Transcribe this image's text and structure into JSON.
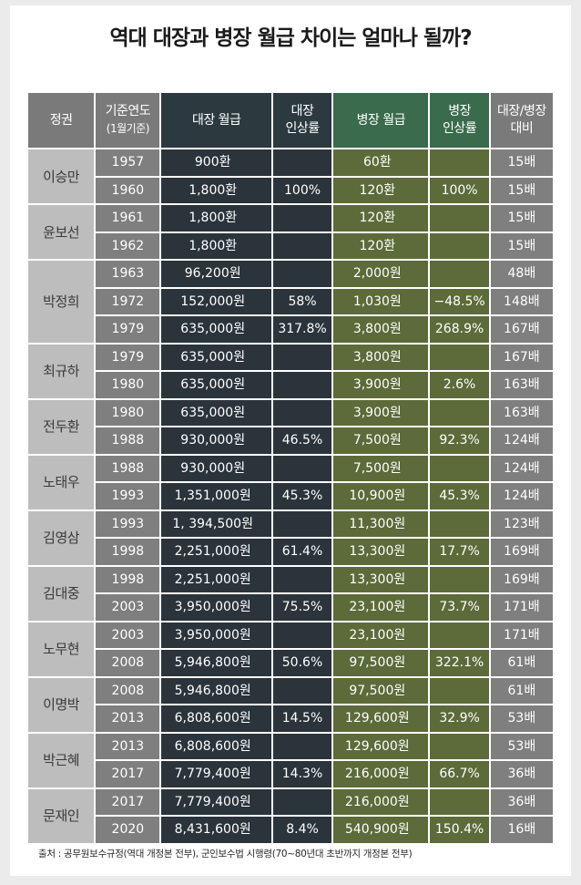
{
  "title": "역대 대장과 병장 월급 차이는 얼마나 될까?",
  "headers": {
    "regime": "정권",
    "year_line1": "기준연도",
    "year_line2": "(1월기준)",
    "general_salary": "대장 월급",
    "general_rate_line1": "대장",
    "general_rate_line2": "인상률",
    "private_salary": "병장 월급",
    "private_rate_line1": "병장",
    "private_rate_line2": "인상률",
    "ratio_line1": "대장/병장",
    "ratio_line2": "대비"
  },
  "groups": [
    {
      "regime": "이승만",
      "rows": [
        {
          "year": "1957",
          "general": "900환",
          "general_rate": "",
          "private": "60환",
          "private_rate": "",
          "ratio": "15배"
        },
        {
          "year": "1960",
          "general": "1,800환",
          "general_rate": "100%",
          "private": "120환",
          "private_rate": "100%",
          "ratio": "15배"
        }
      ]
    },
    {
      "regime": "윤보선",
      "rows": [
        {
          "year": "1961",
          "general": "1,800환",
          "general_rate": "",
          "private": "120환",
          "private_rate": "",
          "ratio": "15배"
        },
        {
          "year": "1962",
          "general": "1,800환",
          "general_rate": "",
          "private": "120환",
          "private_rate": "",
          "ratio": "15배"
        }
      ]
    },
    {
      "regime": "박정희",
      "rows": [
        {
          "year": "1963",
          "general": "96,200원",
          "general_rate": "",
          "private": "2,000원",
          "private_rate": "",
          "ratio": "48배"
        },
        {
          "year": "1972",
          "general": "152,000원",
          "general_rate": "58%",
          "private": "1,030원",
          "private_rate": "−48.5%",
          "ratio": "148배"
        },
        {
          "year": "1979",
          "general": "635,000원",
          "general_rate": "317.8%",
          "private": "3,800원",
          "private_rate": "268.9%",
          "ratio": "167배"
        }
      ]
    },
    {
      "regime": "최규하",
      "rows": [
        {
          "year": "1979",
          "general": "635,000원",
          "general_rate": "",
          "private": "3,800원",
          "private_rate": "",
          "ratio": "167배"
        },
        {
          "year": "1980",
          "general": "635,000원",
          "general_rate": "",
          "private": "3,900원",
          "private_rate": "2.6%",
          "ratio": "163배"
        }
      ]
    },
    {
      "regime": "전두환",
      "rows": [
        {
          "year": "1980",
          "general": "635,000원",
          "general_rate": "",
          "private": "3,900원",
          "private_rate": "",
          "ratio": "163배"
        },
        {
          "year": "1988",
          "general": "930,000원",
          "general_rate": "46.5%",
          "private": "7,500원",
          "private_rate": "92.3%",
          "ratio": "124배"
        }
      ]
    },
    {
      "regime": "노태우",
      "rows": [
        {
          "year": "1988",
          "general": "930,000원",
          "general_rate": "",
          "private": "7,500원",
          "private_rate": "",
          "ratio": "124배"
        },
        {
          "year": "1993",
          "general": "1,351,000원",
          "general_rate": "45.3%",
          "private": "10,900원",
          "private_rate": "45.3%",
          "ratio": "124배"
        }
      ]
    },
    {
      "regime": "김영삼",
      "rows": [
        {
          "year": "1993",
          "general": "1, 394,500원",
          "general_rate": "",
          "private": "11,300원",
          "private_rate": "",
          "ratio": "123배"
        },
        {
          "year": "1998",
          "general": "2,251,000원",
          "general_rate": "61.4%",
          "private": "13,300원",
          "private_rate": "17.7%",
          "ratio": "169배"
        }
      ]
    },
    {
      "regime": "김대중",
      "rows": [
        {
          "year": "1998",
          "general": "2,251,000원",
          "general_rate": "",
          "private": "13,300원",
          "private_rate": "",
          "ratio": "169배"
        },
        {
          "year": "2003",
          "general": "3,950,000원",
          "general_rate": "75.5%",
          "private": "23,100원",
          "private_rate": "73.7%",
          "ratio": "171배"
        }
      ]
    },
    {
      "regime": "노무현",
      "rows": [
        {
          "year": "2003",
          "general": "3,950,000원",
          "general_rate": "",
          "private": "23,100원",
          "private_rate": "",
          "ratio": "171배"
        },
        {
          "year": "2008",
          "general": "5,946,800원",
          "general_rate": "50.6%",
          "private": "97,500원",
          "private_rate": "322.1%",
          "ratio": "61배"
        }
      ]
    },
    {
      "regime": "이명박",
      "rows": [
        {
          "year": "2008",
          "general": "5,946,800원",
          "general_rate": "",
          "private": "97,500원",
          "private_rate": "",
          "ratio": "61배"
        },
        {
          "year": "2013",
          "general": "6,808,600원",
          "general_rate": "14.5%",
          "private": "129,600원",
          "private_rate": "32.9%",
          "ratio": "53배"
        }
      ]
    },
    {
      "regime": "박근혜",
      "rows": [
        {
          "year": "2013",
          "general": "6,808,600원",
          "general_rate": "",
          "private": "129,600원",
          "private_rate": "",
          "ratio": "53배"
        },
        {
          "year": "2017",
          "general": "7,779,400원",
          "general_rate": "14.3%",
          "private": "216,000원",
          "private_rate": "66.7%",
          "ratio": "36배"
        }
      ]
    },
    {
      "regime": "문재인",
      "rows": [
        {
          "year": "2017",
          "general": "7,779,400원",
          "general_rate": "",
          "private": "216,000원",
          "private_rate": "",
          "ratio": "36배"
        },
        {
          "year": "2020",
          "general": "8,431,600원",
          "general_rate": "8.4%",
          "private": "540,900원",
          "private_rate": "150.4%",
          "ratio": "16배"
        }
      ]
    }
  ],
  "source": "출처 : 공무원보수규정(역대 개정본 전부), 군인보수법 시행령(70~80년대 초반까지 개정본 전부)",
  "colors": {
    "header_gray": "#7a7a7a",
    "header_general": "#2c3a40",
    "header_private": "#3a6b4c",
    "regime_cell": "#bdbdbd",
    "year_cell": "#7f7f7f",
    "general_cell": "#2b343b",
    "private_cell": "#5c6b39"
  }
}
